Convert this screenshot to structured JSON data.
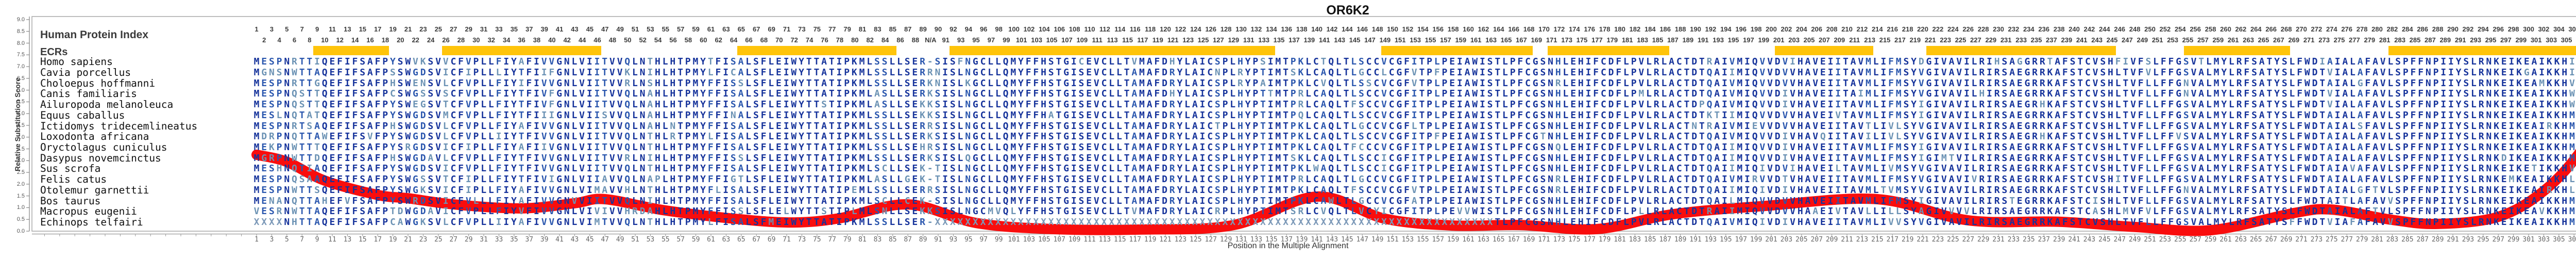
{
  "title": "OR6K2",
  "header": {
    "human_protein_index_label": "Human Protein Index",
    "ecrs_label": "ECRs"
  },
  "y_axis": {
    "label": "Relative Substitution Score",
    "min": 0.0,
    "max": 9.0,
    "step": 0.5,
    "tick_labels": [
      "0.0",
      "0.5",
      "1.0",
      "1.5",
      "2.0",
      "2.5",
      "3.0",
      "3.5",
      "4.0",
      "4.5",
      "5.0",
      "5.5",
      "6.0",
      "6.5",
      "7.0",
      "7.5",
      "8.0",
      "8.5",
      "9.0"
    ]
  },
  "x_axis": {
    "label": "Position in the Multiple Alignment",
    "first_column": 1,
    "last_column": 321,
    "bottom_labels_step": 2
  },
  "top_index": {
    "description": "Human protein index numbers staggered on two rows; N/A where human has alignment gap",
    "gap_label": "N/A",
    "gap_columns": [
      90
    ]
  },
  "alignment": {
    "column_count": 321,
    "species": [
      "Homo sapiens",
      "Cavia porcellus",
      "Choloepus hoffmanni",
      "Canis familiaris",
      "Ailuropoda melanoleuca",
      "Equus caballus",
      "Ictidomys tridecemlineatus",
      "Loxodonta africana",
      "Oryctolagus cuniculus",
      "Dasypus novemcinctus",
      "Sus scrofa",
      "Felis catus",
      "Otolemur garnettii",
      "Bos taurus",
      "Macropus eugenii",
      "Echinops telfairi"
    ],
    "sequences": [
      "MESPNRTTIQEFIFSAFPYSWVKSVVCFVPLLFIYAFIVVGNLVIITVVQLNTHLHTPMYTFISALSFLEIWYTTATIPKMLSSLLSER-SISFNGCLLQMYFFHSTGICEVCLLTVMAFDHYLAICSPLHYPSIMTPKLCTQLTLSCCVCGFITPLPEIAWISTLPFCGSNHLEHIFCDFLPVLRLACTDTRAIVMIQVVDVIHAVEIITAVMLIFMSYDGIVAVILRIHSAGGRRTAFSTCVSHFIVFSLFFGSVTLMYLRFSATYSLFWDIAIALAFAVLSPFFNPIIYSLRNKEIKEAIKKHIGQAKIFFSVRPGTS",
      "MGNSNWTTAQEFIFSAFPSSWGDSVICFIPLLLIYTFIIFGNLVIITVVKLNIHLHTPMYLFICALSFLEIWYTTATIPKMLSSLLSERRNISLNGCLLQMYFFHSTGISEVCLLTAMAFDRYLAICNPLRYPTIMTSKLCAQLTLGCCLCGFVTPFPEIAWISTLPFCGSNHLEHIFCDFLPVLRLACTDTQAIIMIQVVDVVHAVEIITAVMLIFMSYVGIVAVILRIRSAEGRRKAFSTCVSHLTVFVLFFGSVALMYLRFSATYSLFWDTVIALAFAVLSPFFNPIIYSLRNKEIKGAIKKHISQAKTLFS------",
      "MESPNRTTGQEFIFSAFPHSWENSVLCFVPLLFIYIFIVVGNLVIITVVRLNSHLHTPMYFFISSLSFLEIWYTTATIPKMLSSLLSERKNISLKGCLLQMYFFHSTGISEVCLLTAMAFDRYLAICSPLRYPAIMTPKLCVQLTLSSCVCGFVTPLPEIAWISTLPFCGSNRLEHIFCDFLPVLRLACTDTQAIVMIQVVDVVHAVEIITAVMLIFMSYVGIVAVILRIRSAEGRRKAFSTCVSHLTVFLLFFGNVALMYLRFSATYSLFWDTAIALGFAVLSPFFNPIIYSLRNKEIKEAMKKHVGQAKVFF-STLQTS",
      "MESPNQSTTQEFIFSAFPCSWGSSVSCFVPLLFIYTFIVFGNLVIITVVQLNAHLHTPMYFFISALSFLEIWYTTATIPKMLASLLSERKSISLNGCLLQMYFFHSTGISEVCLLTAMAFDHYLAICSPLHYPTTMTPRLCAQLTLSCCVCGFITPLPEIAWISTLPFCGSNHLEHIFCDFLPMLRLACTDTQAIVMIQVVDIVHAVEIITAIMLIFMSYVGIVAVILHIRSAEGRRKAFSTCVSHLTVFLLFFGNVALMYLRFSATYSLFWDTVIALAFAVLSPFFNPIIYSLRNKEIKEAIKKHWGQAKIFFYKTKDLK",
      "MESPNQSTTQEFIFSAFPYSWEGSVTCFVPLLFIYTFIVFGNLVIITVVQLNAHLHTPMYFFISALSFLEIWYTTSTIPKMLASLLSEKKSISLNGCLLQMYFFHSTGISEVCLLTAMAFDRYLAICSPLHYPTIMTPRLCAQLTFSCCVCGFITPLPEIAWISTLPFCGSNHLEHIFCDFLPVLRLACTDPQAIVMIQVVDIVHAVEIITAVMLIFMSYIGIVAVILRIRSAEGRHKAFSTCVSHLTVFLLFFGSVALMYLRFSATYSLFWDTVIALAFAVLSPFFNPIIYSLRNKEIKEAIKKHWGQAKIFFXXXXXXX",
      "MESLNQTATQEFIFSAFPYSWGDSVMCFVPLLFIYTFIIIGNLVIISVVQLNAHLHTPMYFFINALSFLEIWYTTATIPKMLSSLLSEKKSISLNGCLLQMYFFHATGISEVCLLTAMAFDRYLAICSPLHYPTIMTPQLCAQLTLSCCVCGFITPLPEIAWISTLPFCGSNHLEHIFCDFLPVLRLACTDTKTIIMIQVVDVVHAVEIVTAVMLIFMSYIGIVAVILRIRSAEGRRKAFSTCVSHLTVFLLFFGSVALMYLRFSATYSLFWDTAIALAFAVLSPFFNPIIYSLRNKEIKEAIKKHMGQAKIFFHQSRDRK",
      "MESPNRTSAQEFIFSAFPHSWGDSVLCFVPLLFIYAFIVVGNLVIITVVQLNAHLNTPMYFFISALSFLEIWYTTATIPKMLSSLLSERRSISLNGCLLQMYFFHSTGISEVCLLTAMAFDRYLAICTPLHYPTIMTPKLCAQLTLGCCVCGFLTPLPEIAWISTLPFCGSNHLEHIFCDFLPVLRLACTNTRAIVMIEVVDVVHAVEIITAVTLIVLSYVGIVAVILRIRSAEGRRKAFSTCVSHLTVFLLFFGSVALMYLRFSATYSLFWDTAIALSFAVLSPFFNPIIYSLRNKEIKEAIRKHMGQAKNFFHKTRDLQ",
      "MDRPNQTTAWEFIFSVFPYSWGDSVLCFVPLLIIYTFIVVGNLVIITVVQLNTHLRTPMYLFISALSFLEIWYTTATIPKMLSSLLSERKSISLNGCLLQMYFFHSTGISEVCLLTAMAFDRYLAICSPLHYPTIMTPKLCAQLTLSCCVCGFITPFPEIAWISTLPFCGTNHLEHIFCDFLPVLRLACTDTQAIVMIQVVDIVHAVQIITAVILIVLSYVGIVAVILRIRSAEGRHKAFSTCVSHLTVFLLFFVSVALMYLRFSATYSLFWDTAIALAFAVLSPFFNPIIYSLRNKEIKEAIKKHMGQAKTFFHKTRNLK",
      "MEKPNWTTTQEFIFSAFPYSRGDSVICFIPLLFIYAFIIVGNLVIITVVQLNTHLHTPMYFFISALSFLEIWYTTATIPKMLSSLLSEHRSISLNGCLLQMYFFHSTGISEVCLLTAMAFDRYLAICSPLHYPTIMTPKLCAQLTFCCCVCGFITPLPEIAWISTLPFCGSNQLEHIFCDFLPVLRLACTDTQAIIMIQVVDIVHAVEIITAVMLIFMSYIGIVAVILRIRSAEGRRKAFSTCVSHLTVFLLFFGSVALMYLRFSATYSLFWDTAIALAFAVLSPFFNPIIYSLRNKEIKEAIKKHMGQAKVLFFSTTGTQ",
      "MGRPNWTTDQEFIFSAFPHSWGDAVLCFVPLLFIYTFIVVGNLVIITVVRLNIHLHTPMYFFISSLSFLEIWYTTATIPKMLSSLLSERKSISLQGCLLQMYFFHSTGISEVCLLTAMAFDRYLAICSPLHYPTIMTSKLCAQLTLSCCICGFITPLPEIAWISTLPFCGSNHLEHIFCDFLPVLRLACTDTQAIIMIQVVDIVHAVEIITAVMLIFMSYIGIMTVILRIRSAEGRRKAFSTCVSHLTVFLLFFGSVALMYLRFSATYSLFWDTAIALAFAVLSPFFNPIIYSLRNKDIKEAIKKHMGQAKIIFLNTRDLK",
      "MESHNQTIAQEFIFSAFPYSWGDSVICFVPLLFIYTFIVVGNLVIITVVQLNTHLHTPMYFFISALSFLEIWYTTATIPKMLSCLLSEK-TISLNGCLLQMYFFHSTGISEVCLLTAMAFDRYLAICSPLHYPTIMTPKLWAQLTLSCCICGFITPLPEIAWISTLPFCGSNHLEHIFCDFLPVLRLACTDTQAIIMIQIVDVIHAVEILTAVMLIVMSYVGIVAVILRIRSAEGRRKAFSTCVSHLTVFLLFFGSVALMYLRFSATYSLFWDTAIAVAFAVLSPFFNPIIYSLRNKEIKETIKKHVGQAKIFFLKTRDLK",
      "MESPNQSAAQEFIFSAFPYSWGSSVTCFIPLLFIYTFIVIGNLVIIAVVQLNAPLHTPMYFFIGTLSFLEIWYTTATIPKMLASLLGEK-TISLNGCLLQMYFFHSTGISEVCLLTAMAFDRYLAICSPLHYPTIMTPRLCAQLTLGCCVCGFITPLPEIAWISTLPFCGSNRLEHIFCDFLPVLRLACTDTQAIVMIRVVDTVHAVEIITAVMLIFMSYVGIVAVIVRIRSAEGRRKAFSTCVSHITVFLLFFGSVALMYLRFSATYSLFWDTAIALAFAVLSPFFNPIIYSLRNKEMKEAIKKHLGQAKIFFHKTEDLK",
      "MESPNWTTSQEFIFSAFPYSWGKSVICFIPLLFIYAFIVVGNLVIMAVVHLNTHLHTPMYFLISALSFLEIWYTTATIPEMLSSLLSERRSISLNGCLLQMYFFHSTGISEVCLLTAMAFDRYLAICSPLHYPTIMTPKLCAQLTFSCCVCGFVTPLPEIAWISTLPFCGSNRLEHIFCDFLPVLRLACTDTQAIIMIQIVDIVHAVEIITAVMLTVMSYVGIVAVILRIRSAEGRRKAFSTCVSHLTVFLLFFGNVALMYLRFSATYSLFWDTAIALGFTVLSPFFNPIIYSLRNKEIKEAIRKHLGQAKIXXXXXXXXX",
      "MENANQTTAHEFVFSAFPYSWRDSVICFVLLLFIYAFIVVGNVVIITVVQLNIHLHTPMYFFISALSFLEIWYTTATIPKMLSCLLCEK-SISLNGCLLQMYFFHSTGISEVCLLTAMAFDRYLAICSPLHYPTIMTPKLCAWLTLGCCVCGFATPLPEIAWISTLPFCGSNHLEHIFCDFLPVLRLACTDTQAILMIQVVDVVHAVEIITAVMLIFMSYIGIVAVILRIRSTEGRRKAFSTCISHLTVFLLFFGSVALMYLRFSATYSLFWDTAITLAFAVVSPFFNPIIYSLRNKEIKEAIKKHMSQANIFFS------",
      "VESRNWTTAQEFIFSAFPTDWGDAVICFVPLLFIYVFIVVGNLVIVIVVHRDAHLHTPMYFFISSLSFLELWYTTSTIPLMLSNLLSEKKSISLNGCMVQLYFFHSTGISEVCLLTVMAFDRYLAICRPLHYPTIMTSRLCVQLTLVCYICGFITPLPEVVWISTLPFCGSNHLEHIFCDFLPLLRLACTDTRAIIMIQVVDVVHAAEIVTAVLLILLSYAGIVVVVLRIRSAEGRRKAFSTCASHLMVFVLFFGSVALMYLRFSATYSLFWDTAIALAFTVLSPFFNPIIYSLRNKEIKEAVKKHMSLPRIFSKSYIIF-",
      "XXXXNHTTAQEFIFSAFPCAWGKSVLCFVPLLIIYAFIVVGNLVIMTVVQLNTHLHTPMYLFISALSFMEIWYTTATIPKMLSSLLSER-XXXXXXXXXXXXXXXXXXXXXXXXXXXXXXXXXXXXXXXXXXXXXXXXXXXXXXXXXXXXXXXXXXXXXXXXXXTLPFCGSNHLEHIFCDFLPVLRLACTDTQAIVMIQIVDIVHAVEIITAVMLIVVSYVGIVAVILRIRSAEGRRKAFSTCVSHLTVFLLFFGSVALMYLRFSATYSFFWDTVIAFAFAVVSPFFNPIIYSLRNKEIKEAIKKHMSQAKTFFIKGISNX"
    ]
  },
  "ecr_bars": {
    "color": "#FFC40A",
    "column_ranges": [
      [
        9,
        18
      ],
      [
        26,
        46
      ],
      [
        65,
        85
      ],
      [
        93,
        135
      ],
      [
        150,
        169
      ],
      [
        172,
        187
      ],
      [
        202,
        214
      ],
      [
        222,
        246
      ],
      [
        256,
        269
      ],
      [
        283,
        314
      ]
    ]
  },
  "colors": {
    "conserved_letter": "#16339B",
    "majority_letter": "#2B57AE",
    "minority_letter": "#6B92B4",
    "divergent_letter": "#8CBB9E",
    "unknown_letter": "#7C99B8",
    "score_curve": "#F90D0D",
    "ecr_bar": "#FFC40A",
    "frame": "#A8A8A8",
    "axis_line": "#888888",
    "top_number": "#3B3B3B",
    "bottom_number": "#666666",
    "text": "#333333"
  },
  "chart_data": {
    "type": "line",
    "title": "OR6K2",
    "xlabel": "Position in the Multiple Alignment",
    "ylabel": "Relative Substitution Score",
    "xlim": [
      1,
      321
    ],
    "ylim": [
      0,
      9
    ],
    "grid": false,
    "legend": "none",
    "series": [
      {
        "name": "Relative Substitution Score",
        "color": "#F90D0D",
        "points": [
          [
            1,
            3.25
          ],
          [
            5,
            2.95
          ],
          [
            10,
            2.15
          ],
          [
            17,
            1.54
          ],
          [
            21,
            1.4
          ],
          [
            27,
            1.14
          ],
          [
            36,
            0.97
          ],
          [
            43,
            1.19
          ],
          [
            47,
            1.36
          ],
          [
            55,
            0.88
          ],
          [
            65,
            0.5
          ],
          [
            72,
            0.37
          ],
          [
            78,
            0.55
          ],
          [
            87,
            1.14
          ],
          [
            96,
            0.35
          ],
          [
            106,
            0.09
          ],
          [
            118,
            0.07
          ],
          [
            130,
            0.26
          ],
          [
            141,
            1.47
          ],
          [
            150,
            0.53
          ],
          [
            159,
            0.24
          ],
          [
            168,
            0.26
          ],
          [
            178,
            0.09
          ],
          [
            188,
            0.72
          ],
          [
            200,
            1.07
          ],
          [
            215,
            1.36
          ],
          [
            227,
            0.46
          ],
          [
            239,
            0.4
          ],
          [
            249,
            0.18
          ],
          [
            259,
            0.04
          ],
          [
            270,
            0.77
          ],
          [
            275,
            0.92
          ],
          [
            283,
            0.48
          ],
          [
            289,
            0.31
          ],
          [
            297,
            0.61
          ],
          [
            303,
            1.71
          ],
          [
            308,
            3.46
          ],
          [
            312,
            5.77
          ],
          [
            315,
            7.41
          ],
          [
            318,
            8.05
          ],
          [
            321,
            8.3
          ]
        ]
      }
    ]
  }
}
